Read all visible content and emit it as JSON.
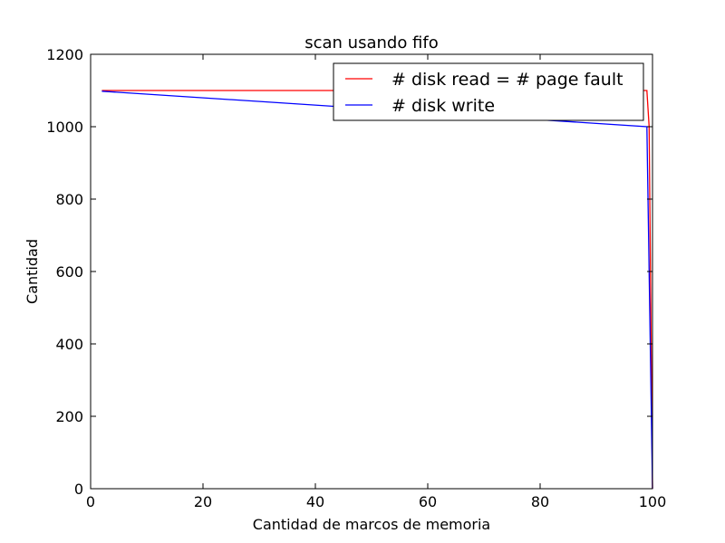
{
  "chart_data": {
    "type": "line",
    "title": "scan usando fifo",
    "xlabel": "Cantidad de marcos de memoria",
    "ylabel": "Cantidad",
    "xlim": [
      0,
      100
    ],
    "ylim": [
      0,
      1200
    ],
    "xticks": [
      0,
      20,
      40,
      60,
      80,
      100
    ],
    "yticks": [
      0,
      200,
      400,
      600,
      800,
      1000,
      1200
    ],
    "grid": false,
    "legend_position": "top-right",
    "series": [
      {
        "name": "# disk read = # page fault",
        "color": "#ff0000",
        "x": [
          2,
          99,
          99.4,
          100
        ],
        "y": [
          1100,
          1100,
          1000,
          0
        ]
      },
      {
        "name": "# disk write",
        "color": "#0000ff",
        "x": [
          2,
          99,
          100
        ],
        "y": [
          1098,
          1000,
          0
        ]
      }
    ]
  }
}
